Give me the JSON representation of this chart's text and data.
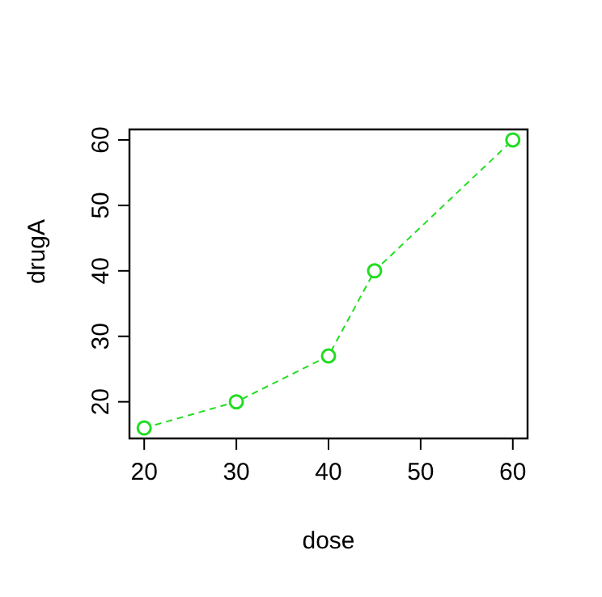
{
  "chart_data": {
    "type": "line",
    "xlabel": "dose",
    "ylabel": "drugA",
    "x": [
      20,
      30,
      40,
      45,
      60
    ],
    "series": [
      {
        "color": "#22dd22",
        "values": [
          16,
          20,
          27,
          40,
          60
        ]
      }
    ],
    "xlim": [
      18.4,
      61.6
    ],
    "xticks": [
      20,
      30,
      40,
      50,
      60
    ],
    "ylim": [
      14.4,
      61.6
    ],
    "yticks": [
      20,
      30,
      40,
      50,
      60
    ],
    "grid": false,
    "legend": false,
    "marker": "circle",
    "line_style": "dashed"
  }
}
